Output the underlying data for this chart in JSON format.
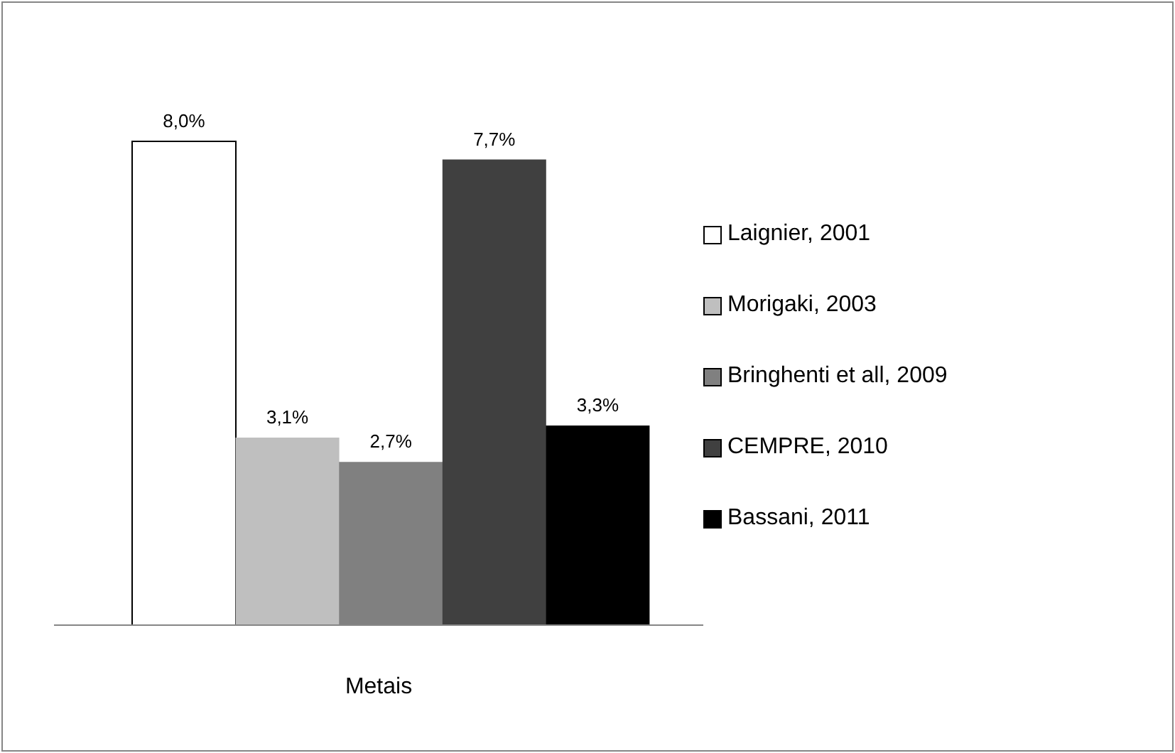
{
  "chart_data": {
    "type": "bar",
    "xlabel": "Metais",
    "stacked": true,
    "categories": [
      null,
      null,
      null,
      null,
      null
    ],
    "series": [
      {
        "name": "Laignier, 2001",
        "color": "#ffffff",
        "values": [
          8.0,
          null,
          null,
          null,
          null
        ],
        "value_labels": [
          "8,0%",
          null,
          null,
          null,
          null
        ]
      },
      {
        "name": "Morigaki, 2003",
        "color": "#bfbfbf",
        "values": [
          null,
          3.1,
          null,
          null,
          null
        ],
        "value_labels": [
          null,
          "3,1%",
          null,
          null,
          null
        ]
      },
      {
        "name": "Bringhenti et all, 2009",
        "color": "#808080",
        "values": [
          null,
          null,
          2.7,
          null,
          null
        ],
        "value_labels": [
          null,
          null,
          "2,7%",
          null,
          null
        ]
      },
      {
        "name": "CEMPRE, 2010",
        "color": "#404040",
        "values": [
          null,
          null,
          null,
          7.7,
          null
        ],
        "value_labels": [
          null,
          null,
          null,
          "7,7%",
          null
        ]
      },
      {
        "name": "Bassani, 2011",
        "color": "#000000",
        "values": [
          null,
          null,
          null,
          null,
          3.3
        ],
        "value_labels": [
          null,
          null,
          null,
          null,
          "3,3%"
        ]
      }
    ],
    "legend": "right",
    "grid": false
  }
}
